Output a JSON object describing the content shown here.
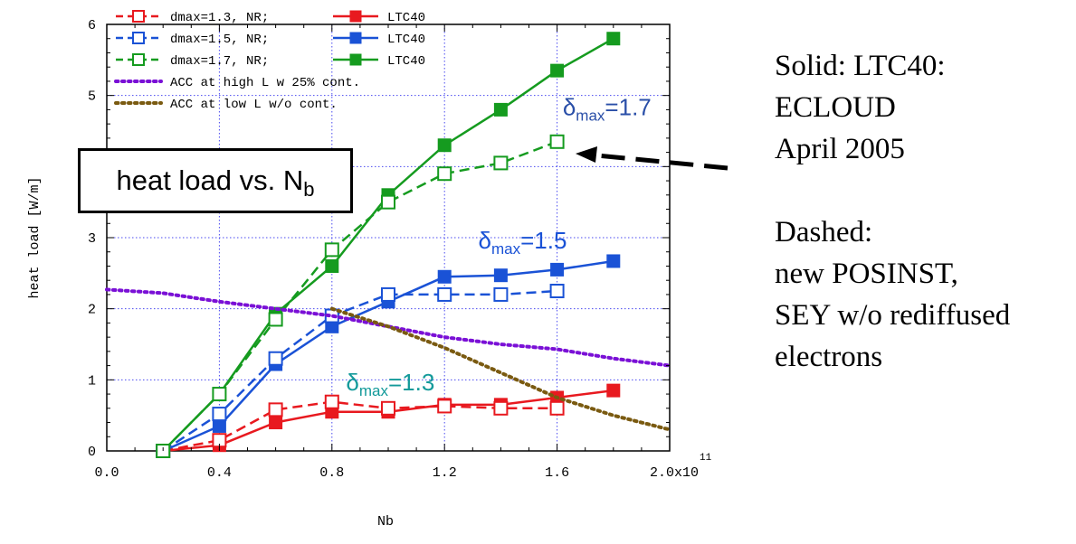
{
  "chart_data": {
    "type": "line",
    "xlabel": "Nb",
    "ylabel": "heat load [W/m]",
    "x_exponent": "11",
    "xlim": [
      0.0,
      2.0
    ],
    "ylim": [
      0,
      6
    ],
    "x_ticks": [
      "0.0",
      "0.4",
      "0.8",
      "1.2",
      "1.6",
      "2.0x10"
    ],
    "y_ticks": [
      "0",
      "1",
      "2",
      "3",
      "4",
      "5",
      "6"
    ],
    "grid": "dotted, blue",
    "legend_position": "top-left",
    "legend": [
      {
        "label": "dmax=1.3, NR;",
        "series": "dmax13_nr"
      },
      {
        "label": "dmax=1.5, NR;",
        "series": "dmax15_nr"
      },
      {
        "label": "dmax=1.7, NR;",
        "series": "dmax17_nr"
      },
      {
        "label": "LTC40",
        "series": "ltc13"
      },
      {
        "label": "LTC40",
        "series": "ltc15"
      },
      {
        "label": "LTC40",
        "series": "ltc17"
      },
      {
        "label": "ACC at high L w 25% cont.",
        "series": "acc_high"
      },
      {
        "label": "ACC at low L w/o cont.",
        "series": "acc_low"
      }
    ],
    "series": [
      {
        "id": "ltc13",
        "color": "#e8191f",
        "style": "solid",
        "marker": "filled-square",
        "points": [
          [
            0.2,
            0.0
          ],
          [
            0.4,
            0.08
          ],
          [
            0.6,
            0.4
          ],
          [
            0.8,
            0.55
          ],
          [
            1.0,
            0.55
          ],
          [
            1.2,
            0.65
          ],
          [
            1.4,
            0.65
          ],
          [
            1.6,
            0.75
          ],
          [
            1.8,
            0.85
          ]
        ]
      },
      {
        "id": "dmax13_nr",
        "color": "#e8191f",
        "style": "dashed",
        "marker": "open-square",
        "points": [
          [
            0.2,
            0.0
          ],
          [
            0.4,
            0.15
          ],
          [
            0.6,
            0.58
          ],
          [
            0.8,
            0.69
          ],
          [
            1.0,
            0.6
          ],
          [
            1.2,
            0.63
          ],
          [
            1.4,
            0.6
          ],
          [
            1.6,
            0.6
          ]
        ]
      },
      {
        "id": "ltc15",
        "color": "#1a52d6",
        "style": "solid",
        "marker": "filled-square",
        "points": [
          [
            0.2,
            0.0
          ],
          [
            0.4,
            0.35
          ],
          [
            0.6,
            1.22
          ],
          [
            0.8,
            1.75
          ],
          [
            1.0,
            2.1
          ],
          [
            1.2,
            2.45
          ],
          [
            1.4,
            2.47
          ],
          [
            1.6,
            2.55
          ],
          [
            1.8,
            2.67
          ]
        ]
      },
      {
        "id": "dmax15_nr",
        "color": "#1a52d6",
        "style": "dashed",
        "marker": "open-square",
        "points": [
          [
            0.2,
            0.0
          ],
          [
            0.4,
            0.52
          ],
          [
            0.6,
            1.3
          ],
          [
            0.8,
            1.9
          ],
          [
            1.0,
            2.2
          ],
          [
            1.2,
            2.2
          ],
          [
            1.4,
            2.2
          ],
          [
            1.6,
            2.25
          ]
        ]
      },
      {
        "id": "ltc17",
        "color": "#159b1f",
        "style": "solid",
        "marker": "filled-square",
        "points": [
          [
            0.2,
            0.0
          ],
          [
            0.4,
            0.8
          ],
          [
            0.6,
            1.93
          ],
          [
            0.8,
            2.6
          ],
          [
            1.0,
            3.6
          ],
          [
            1.2,
            4.3
          ],
          [
            1.4,
            4.8
          ],
          [
            1.6,
            5.35
          ],
          [
            1.8,
            5.8
          ]
        ]
      },
      {
        "id": "dmax17_nr",
        "color": "#159b1f",
        "style": "dashed",
        "marker": "open-square",
        "points": [
          [
            0.2,
            0.0
          ],
          [
            0.4,
            0.8
          ],
          [
            0.6,
            1.85
          ],
          [
            0.8,
            2.83
          ],
          [
            1.0,
            3.5
          ],
          [
            1.2,
            3.9
          ],
          [
            1.4,
            4.05
          ],
          [
            1.6,
            4.35
          ]
        ]
      },
      {
        "id": "acc_high",
        "color": "#7a10d6",
        "style": "dotted",
        "marker": "none",
        "points": [
          [
            0.0,
            2.27
          ],
          [
            0.2,
            2.22
          ],
          [
            0.4,
            2.1
          ],
          [
            0.6,
            2.0
          ],
          [
            0.8,
            1.9
          ],
          [
            1.0,
            1.75
          ],
          [
            1.2,
            1.6
          ],
          [
            1.4,
            1.5
          ],
          [
            1.6,
            1.43
          ],
          [
            1.8,
            1.3
          ],
          [
            2.0,
            1.2
          ]
        ]
      },
      {
        "id": "acc_low",
        "color": "#7a5a10",
        "style": "dotted",
        "marker": "none",
        "points": [
          [
            0.8,
            2.0
          ],
          [
            1.0,
            1.75
          ],
          [
            1.2,
            1.45
          ],
          [
            1.4,
            1.1
          ],
          [
            1.6,
            0.75
          ],
          [
            1.8,
            0.5
          ],
          [
            2.0,
            0.3
          ]
        ]
      }
    ],
    "annotations": [
      {
        "text_main": "δ",
        "text_sub": "max",
        "text_rest": "=1.7",
        "color": "#2a4fa8",
        "anchor": [
          1.62,
          4.72
        ]
      },
      {
        "text_main": "δ",
        "text_sub": "max",
        "text_rest": "=1.5",
        "color": "#1a52d6",
        "anchor": [
          1.32,
          2.85
        ]
      },
      {
        "text_main": "δ",
        "text_sub": "max",
        "text_rest": "=1.3",
        "color": "#139a9a",
        "anchor": [
          0.85,
          0.85
        ]
      }
    ]
  },
  "title_box": {
    "main": "heat load vs. N",
    "sub": "b"
  },
  "side_notes": {
    "solid_heading": "Solid: LTC40:",
    "solid_line2": "ECLOUD",
    "solid_line3": "April 2005",
    "dashed_heading": "Dashed:",
    "dashed_line2": "new POSINST,",
    "dashed_line3": "SEY w/o rediffused",
    "dashed_line4": "electrons"
  }
}
